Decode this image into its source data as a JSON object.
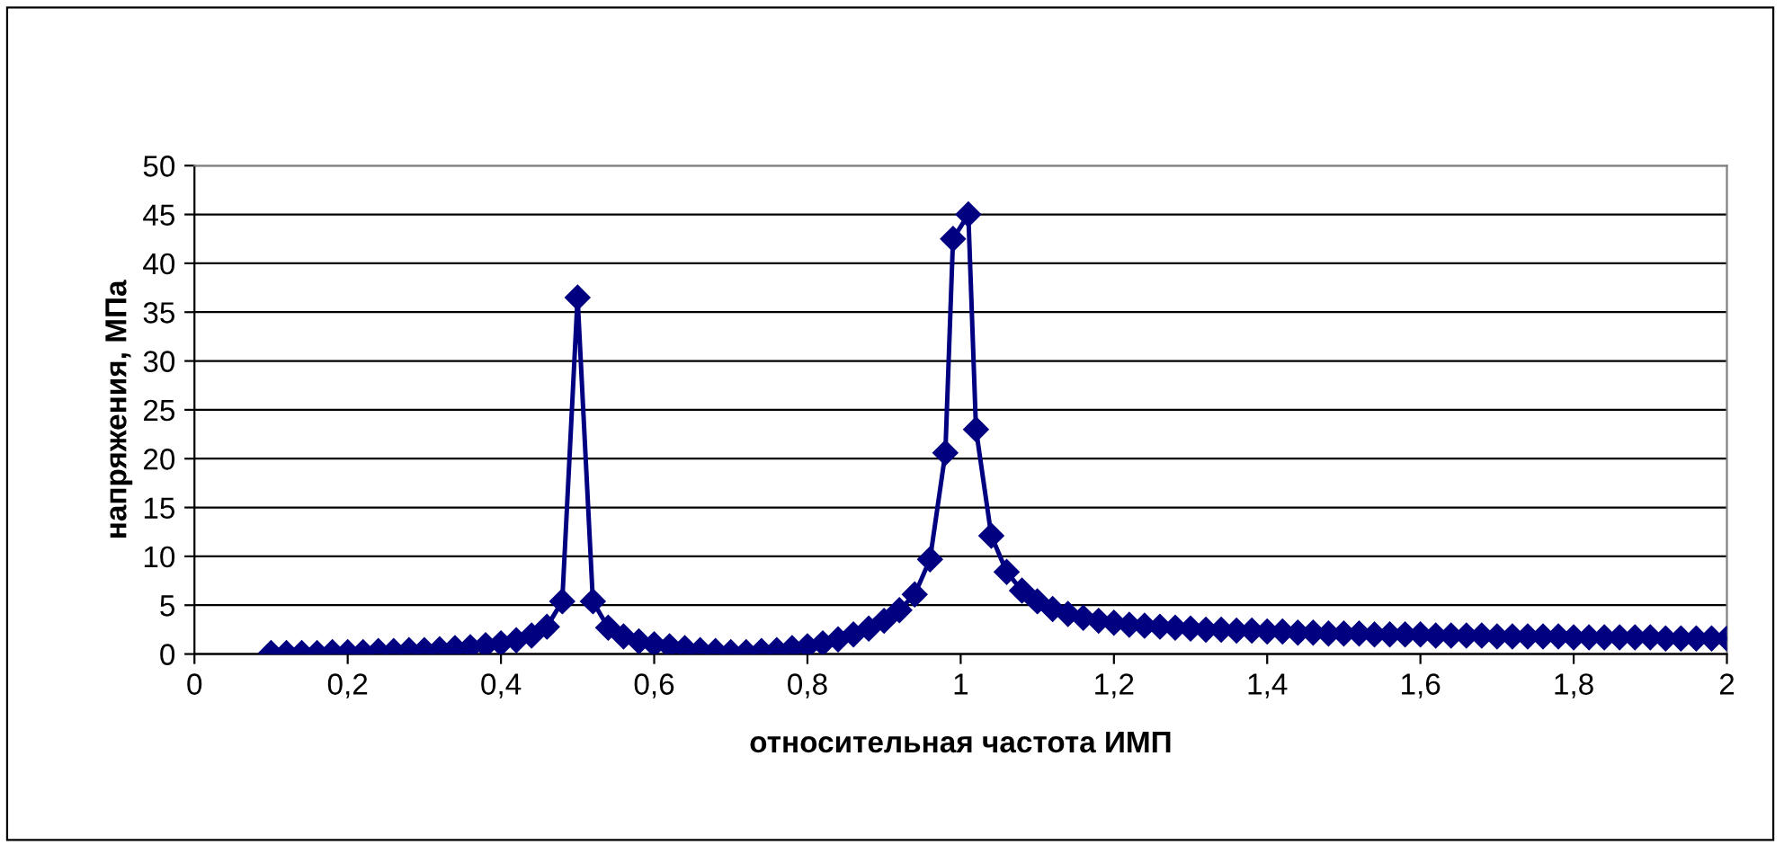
{
  "chart_data": {
    "type": "line",
    "xlabel": "относительная частота ИМП",
    "ylabel": "напряжения, МПа",
    "xlim": [
      0,
      2
    ],
    "ylim": [
      0,
      50
    ],
    "xticks": [
      0,
      {
        "value": 0.2,
        "label": "0,2"
      },
      {
        "value": 0.4,
        "label": "0,4"
      },
      {
        "value": 0.6,
        "label": "0,6"
      },
      {
        "value": 0.8,
        "label": "0,8"
      },
      1,
      {
        "value": 1.2,
        "label": "1,2"
      },
      {
        "value": 1.4,
        "label": "1,4"
      },
      {
        "value": 1.6,
        "label": "1,6"
      },
      {
        "value": 1.8,
        "label": "1,8"
      },
      2
    ],
    "yticks": [
      0,
      5,
      10,
      15,
      20,
      25,
      30,
      35,
      40,
      45,
      50
    ],
    "grid": "y",
    "marker": "diamond",
    "line_style": "solid",
    "series": [
      {
        "color": "#000080",
        "x": [
          0.1,
          0.12,
          0.14,
          0.16,
          0.18,
          0.2,
          0.22,
          0.24,
          0.26,
          0.28,
          0.3,
          0.32,
          0.34,
          0.36,
          0.38,
          0.4,
          0.42,
          0.44,
          0.46,
          0.48,
          0.5,
          0.52,
          0.54,
          0.56,
          0.58,
          0.6,
          0.62,
          0.64,
          0.66,
          0.68,
          0.7,
          0.72,
          0.74,
          0.76,
          0.78,
          0.8,
          0.82,
          0.84,
          0.86,
          0.88,
          0.9,
          0.92,
          0.94,
          0.96,
          0.98,
          0.99,
          1.01,
          1.02,
          1.04,
          1.06,
          1.08,
          1.1,
          1.12,
          1.14,
          1.16,
          1.18,
          1.2,
          1.22,
          1.24,
          1.26,
          1.28,
          1.3,
          1.32,
          1.34,
          1.36,
          1.38,
          1.4,
          1.42,
          1.44,
          1.46,
          1.48,
          1.5,
          1.52,
          1.54,
          1.56,
          1.58,
          1.6,
          1.62,
          1.64,
          1.66,
          1.68,
          1.7,
          1.72,
          1.74,
          1.76,
          1.78,
          1.8,
          1.82,
          1.84,
          1.86,
          1.88,
          1.9,
          1.92,
          1.94,
          1.96,
          1.98,
          2.0
        ],
        "values": [
          0.1,
          0.1,
          0.1,
          0.1,
          0.2,
          0.2,
          0.2,
          0.3,
          0.3,
          0.4,
          0.4,
          0.5,
          0.6,
          0.7,
          0.9,
          1.1,
          1.4,
          1.9,
          2.8,
          5.4,
          36.5,
          5.4,
          2.7,
          1.8,
          1.3,
          1.0,
          0.8,
          0.6,
          0.4,
          0.3,
          0.2,
          0.2,
          0.3,
          0.4,
          0.6,
          0.8,
          1.1,
          1.5,
          2.0,
          2.6,
          3.4,
          4.5,
          6.1,
          9.7,
          20.6,
          42.5,
          45.0,
          23.0,
          12.1,
          8.4,
          6.5,
          5.4,
          4.6,
          4.1,
          3.7,
          3.4,
          3.2,
          3.0,
          2.9,
          2.8,
          2.7,
          2.6,
          2.5,
          2.5,
          2.4,
          2.4,
          2.3,
          2.3,
          2.2,
          2.2,
          2.1,
          2.1,
          2.1,
          2.0,
          2.0,
          2.0,
          2.0,
          1.9,
          1.9,
          1.9,
          1.9,
          1.8,
          1.8,
          1.8,
          1.8,
          1.8,
          1.7,
          1.7,
          1.7,
          1.7,
          1.7,
          1.7,
          1.6,
          1.6,
          1.6,
          1.6,
          1.6
        ]
      }
    ]
  }
}
